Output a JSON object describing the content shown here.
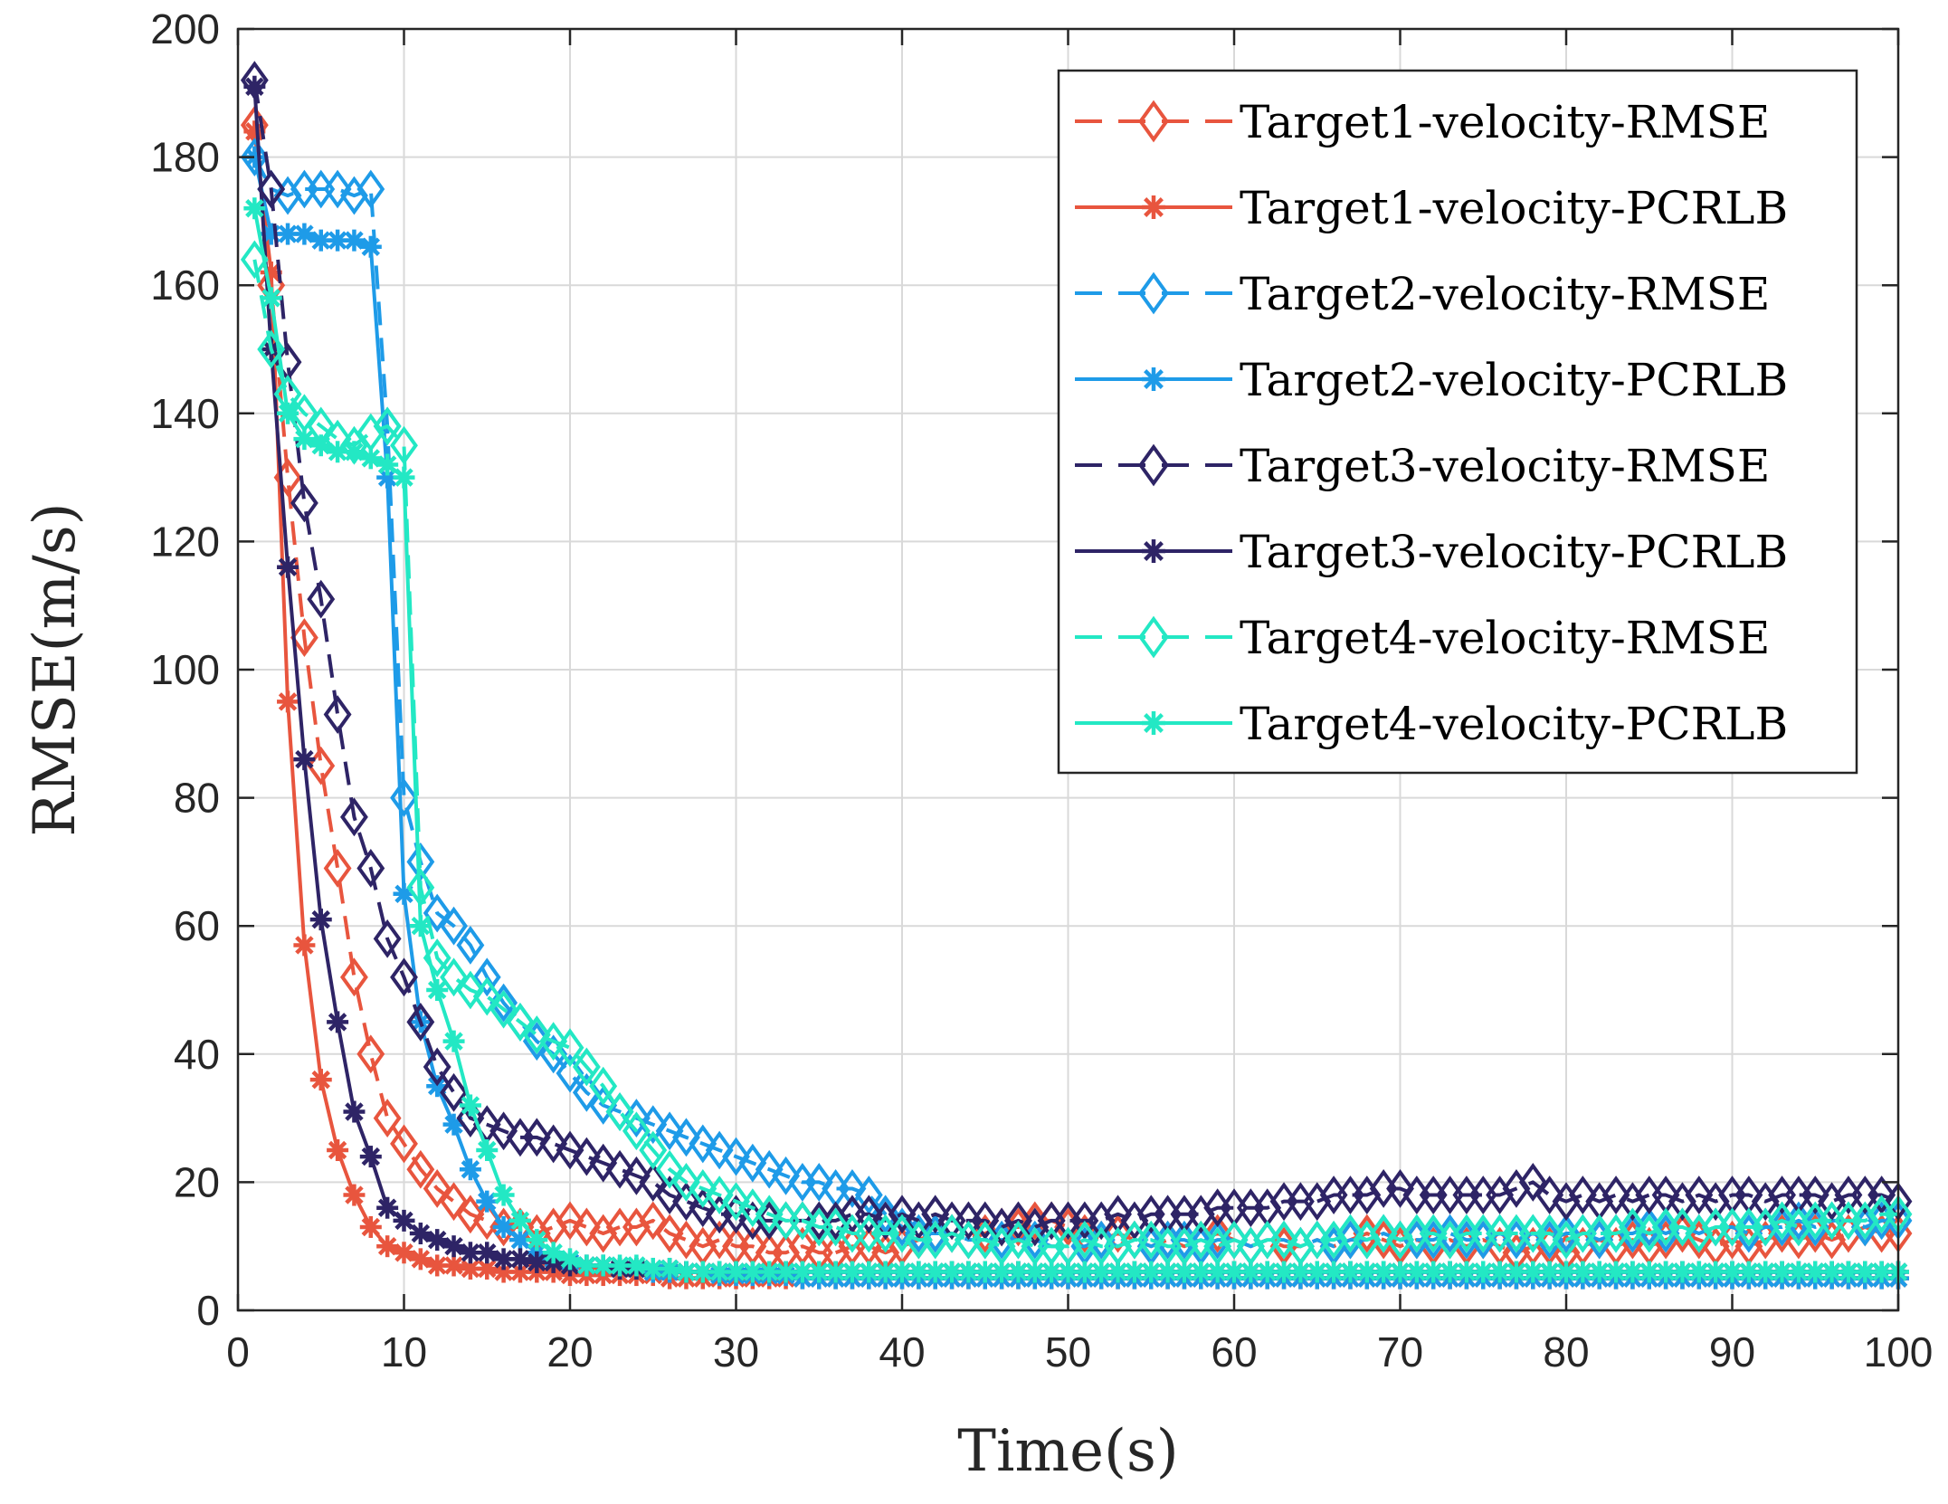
{
  "chart_data": {
    "type": "line",
    "title": "",
    "xlabel": "Time(s)",
    "ylabel": "RMSE(m/s)",
    "xlim": [
      0,
      100
    ],
    "ylim": [
      0,
      200
    ],
    "xticks": [
      0,
      10,
      20,
      30,
      40,
      50,
      60,
      70,
      80,
      90,
      100
    ],
    "yticks": [
      0,
      20,
      40,
      60,
      80,
      100,
      120,
      140,
      160,
      180,
      200
    ],
    "grid": true,
    "legend_position": "top-right",
    "x": [
      1,
      2,
      3,
      4,
      5,
      6,
      7,
      8,
      9,
      10,
      11,
      12,
      13,
      14,
      15,
      16,
      17,
      18,
      19,
      20,
      21,
      22,
      23,
      24,
      25,
      26,
      27,
      28,
      29,
      30,
      31,
      32,
      33,
      34,
      35,
      36,
      37,
      38,
      39,
      40,
      41,
      42,
      43,
      44,
      45,
      46,
      47,
      48,
      49,
      50,
      51,
      52,
      53,
      54,
      55,
      56,
      57,
      58,
      59,
      60,
      61,
      62,
      63,
      64,
      65,
      66,
      67,
      68,
      69,
      70,
      71,
      72,
      73,
      74,
      75,
      76,
      77,
      78,
      79,
      80,
      81,
      82,
      83,
      84,
      85,
      86,
      87,
      88,
      89,
      90,
      91,
      92,
      93,
      94,
      95,
      96,
      97,
      98,
      99,
      100
    ],
    "series": [
      {
        "name": "Target1-velocity-RMSE",
        "color": "#E8553E",
        "style": "dashed",
        "marker": "diamond",
        "values": [
          185,
          160,
          130,
          105,
          85,
          69,
          52,
          40,
          30,
          26,
          22,
          19,
          17,
          15,
          14,
          13,
          13,
          12,
          13,
          14,
          13,
          12,
          13,
          13,
          14,
          12,
          11,
          10,
          11,
          10,
          10,
          9,
          9,
          10,
          9,
          9,
          10,
          10,
          9,
          10,
          11,
          12,
          12,
          11,
          12,
          13,
          13,
          14,
          14,
          13,
          12,
          11,
          12,
          11,
          10,
          11,
          10,
          11,
          12,
          11,
          10,
          11,
          10,
          10,
          11,
          10,
          11,
          12,
          11,
          10,
          11,
          10,
          11,
          10,
          11,
          10,
          9,
          10,
          10,
          9,
          10,
          11,
          10,
          11,
          10,
          11,
          12,
          11,
          10,
          11,
          10,
          11,
          12,
          11,
          12,
          11,
          12,
          13,
          12,
          12
        ]
      },
      {
        "name": "Target1-velocity-PCRLB",
        "color": "#E8553E",
        "style": "solid",
        "marker": "asterisk",
        "values": [
          184,
          162,
          95,
          57,
          36,
          25,
          18,
          13,
          10,
          9,
          8,
          7,
          7,
          6.5,
          6.5,
          6,
          6,
          6,
          6,
          5.5,
          5.5,
          5.5,
          5.5,
          5.5,
          5.5,
          5,
          5,
          5,
          5,
          5,
          5,
          5,
          5,
          5,
          5,
          5,
          5,
          5,
          5,
          5,
          5,
          5,
          5,
          5,
          5,
          5,
          5,
          5,
          5,
          5,
          5,
          5,
          5,
          5,
          5,
          5,
          5,
          5,
          5,
          5,
          5,
          5,
          5,
          5,
          5,
          5,
          5,
          5,
          5,
          5,
          5,
          5,
          5,
          5,
          5,
          5,
          5,
          5,
          5,
          5,
          5,
          5,
          5,
          5,
          5,
          5,
          5,
          5,
          5,
          5,
          5,
          5,
          5,
          5,
          5,
          5,
          5,
          5,
          5,
          5
        ]
      },
      {
        "name": "Target2-velocity-RMSE",
        "color": "#1E9BE8",
        "style": "dashed",
        "marker": "diamond",
        "values": [
          180,
          175,
          174,
          175,
          175,
          175,
          174,
          175,
          138,
          80,
          70,
          62,
          60,
          57,
          52,
          48,
          45,
          42,
          40,
          37,
          34,
          32,
          31,
          30,
          29,
          28,
          27,
          26,
          25,
          24,
          23,
          22,
          21,
          20,
          20,
          19,
          19,
          18,
          15,
          13,
          12,
          12,
          12,
          11,
          11,
          11,
          11,
          11,
          10,
          10,
          10,
          11,
          10,
          11,
          10,
          11,
          11,
          10,
          11,
          11,
          10,
          11,
          11,
          10,
          11,
          10,
          11,
          11,
          12,
          11,
          11,
          11,
          12,
          11,
          11,
          12,
          11,
          12,
          11,
          12,
          12,
          11,
          12,
          12,
          13,
          12,
          13,
          12,
          13,
          13,
          12,
          13,
          13,
          14,
          13,
          14,
          14,
          13,
          14,
          14
        ]
      },
      {
        "name": "Target2-velocity-PCRLB",
        "color": "#1E9BE8",
        "style": "solid",
        "marker": "asterisk",
        "values": [
          180,
          168,
          168,
          168,
          167,
          167,
          167,
          166,
          130,
          65,
          45,
          35,
          29,
          22,
          17,
          13,
          11,
          9,
          8,
          7.5,
          7,
          7,
          6.5,
          6.5,
          6,
          6,
          6,
          6,
          5.5,
          5.5,
          5.5,
          5.5,
          5.5,
          5,
          5,
          5,
          5,
          5,
          5,
          5,
          5,
          5,
          5,
          5,
          5,
          5,
          5,
          5,
          5,
          5,
          5,
          5,
          5,
          5,
          5,
          5,
          5,
          5,
          5,
          5,
          5,
          5,
          5,
          5,
          5,
          5,
          5,
          5,
          5,
          5,
          5,
          5,
          5,
          5,
          5,
          5,
          5,
          5,
          5,
          5,
          5,
          5,
          5,
          5,
          5,
          5,
          5,
          5,
          5,
          5,
          5,
          5,
          5,
          5,
          5,
          5,
          5,
          5,
          5,
          5
        ]
      },
      {
        "name": "Target3-velocity-RMSE",
        "color": "#2E2466",
        "style": "dashed",
        "marker": "diamond",
        "values": [
          192,
          175,
          148,
          126,
          111,
          93,
          77,
          69,
          58,
          52,
          45,
          38,
          34,
          30,
          29,
          28,
          27,
          27,
          26,
          25,
          24,
          23,
          22,
          21,
          20,
          18,
          17,
          16,
          15,
          15,
          14,
          14,
          14,
          14,
          14,
          14,
          15,
          15,
          14,
          15,
          14,
          15,
          14,
          14,
          14,
          13,
          14,
          13,
          14,
          14,
          14,
          14,
          15,
          14,
          15,
          15,
          15,
          15,
          16,
          16,
          16,
          16,
          17,
          17,
          17,
          18,
          18,
          18,
          19,
          19,
          18,
          18,
          18,
          18,
          18,
          18,
          19,
          20,
          18,
          17,
          18,
          17,
          18,
          17,
          18,
          18,
          17,
          18,
          17,
          18,
          18,
          17,
          18,
          18,
          18,
          17,
          18,
          18,
          18,
          17
        ]
      },
      {
        "name": "Target3-velocity-PCRLB",
        "color": "#2E2466",
        "style": "solid",
        "marker": "asterisk",
        "values": [
          191,
          150,
          116,
          86,
          61,
          45,
          31,
          24,
          16,
          14,
          12,
          11,
          10,
          9,
          9,
          8,
          8,
          7.5,
          7.5,
          7,
          7,
          7,
          6.5,
          6.5,
          6.5,
          6.5,
          6,
          6,
          6,
          6,
          6,
          6,
          6,
          6,
          6,
          6,
          6,
          6,
          6,
          6,
          6,
          6,
          6,
          6,
          6,
          6,
          6,
          6,
          6,
          6,
          6,
          6,
          6,
          6,
          6,
          6,
          6,
          6,
          6,
          6,
          6,
          6,
          6,
          6,
          6,
          6,
          6,
          6,
          6,
          6,
          6,
          6,
          6,
          6,
          6,
          6,
          6,
          6,
          6,
          6,
          6,
          6,
          6,
          6,
          6,
          6,
          6,
          6,
          6,
          6,
          6,
          6,
          6,
          6,
          6,
          6,
          6,
          6,
          6,
          6
        ]
      },
      {
        "name": "Target4-velocity-RMSE",
        "color": "#23E8C4",
        "style": "dashed",
        "marker": "diamond",
        "values": [
          164,
          150,
          143,
          140,
          138,
          136,
          135,
          137,
          138,
          135,
          66,
          55,
          52,
          50,
          49,
          47,
          45,
          43,
          42,
          41,
          38,
          35,
          31,
          28,
          25,
          22,
          20,
          19,
          18,
          17,
          16,
          15,
          14,
          14,
          13,
          13,
          12,
          12,
          12,
          12,
          11,
          11,
          12,
          11,
          11,
          10,
          11,
          10,
          10,
          10,
          11,
          10,
          10,
          11,
          11,
          10,
          10,
          11,
          10,
          11,
          10,
          11,
          11,
          10,
          11,
          11,
          12,
          11,
          12,
          11,
          12,
          12,
          11,
          12,
          12,
          12,
          12,
          12,
          12,
          11,
          12,
          12,
          12,
          13,
          12,
          13,
          13,
          12,
          13,
          13,
          13,
          13,
          14,
          13,
          14,
          14,
          14,
          14,
          15,
          15
        ]
      },
      {
        "name": "Target4-velocity-PCRLB",
        "color": "#23E8C4",
        "style": "solid",
        "marker": "asterisk",
        "values": [
          172,
          158,
          140,
          136,
          135,
          134,
          134,
          133,
          132,
          130,
          60,
          50,
          42,
          32,
          25,
          18,
          14,
          11,
          9,
          8,
          7,
          7,
          7,
          7,
          6.5,
          6.5,
          6,
          6,
          6,
          6,
          6,
          6,
          6,
          6,
          6,
          6,
          6,
          6,
          6,
          6,
          6,
          6,
          6,
          6,
          6,
          6,
          6,
          6,
          6,
          6,
          6,
          6,
          6,
          6,
          6,
          6,
          6,
          6,
          6,
          6,
          6,
          6,
          6,
          6,
          6,
          6,
          6,
          6,
          6,
          6,
          6,
          6,
          6,
          6,
          6,
          6,
          6,
          6,
          6,
          6,
          6,
          6,
          6,
          6,
          6,
          6,
          6,
          6,
          6,
          6,
          6,
          6,
          6,
          6,
          6,
          6,
          6,
          6,
          6,
          6
        ]
      }
    ]
  }
}
